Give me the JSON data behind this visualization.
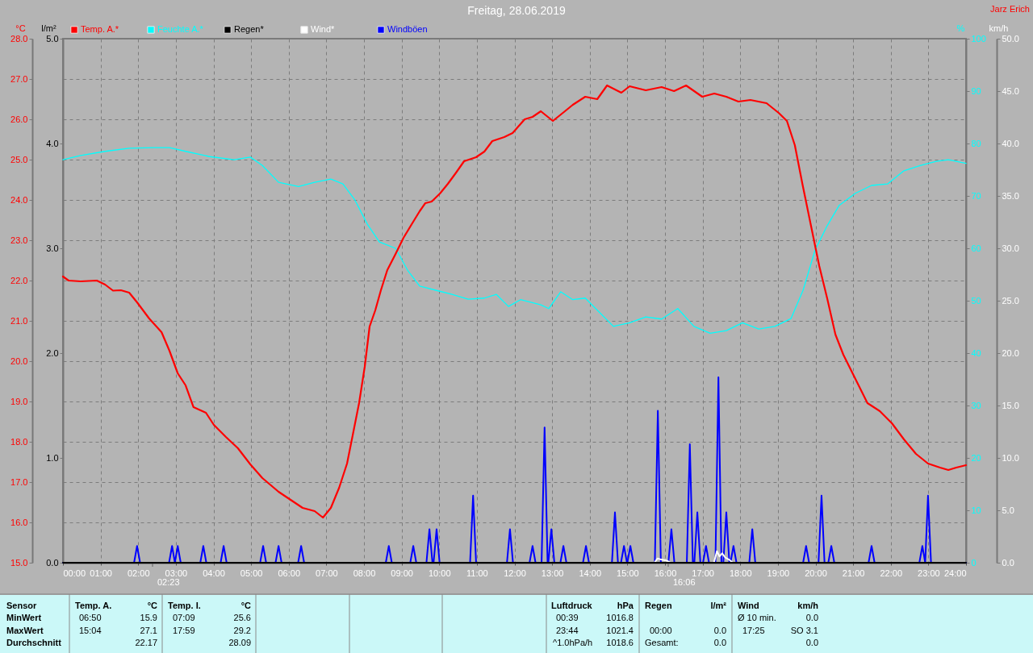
{
  "chart_data": [
    {
      "type": "line",
      "title": "Freitag, 28.06.2019",
      "ylabel": "°C",
      "y2label": "l/m²",
      "y3label": "%",
      "xlim": [
        0,
        24
      ],
      "xticks": [
        {
          "value": 0,
          "label": "00:00"
        },
        {
          "value": 1,
          "label": "01:00"
        },
        {
          "value": 2,
          "label": "02:00"
        },
        {
          "value": 3,
          "label": "03:00"
        },
        {
          "value": 4,
          "label": "04:00"
        },
        {
          "value": 5,
          "label": "05:00"
        },
        {
          "value": 6,
          "label": "06:00"
        },
        {
          "value": 7,
          "label": "07:00"
        },
        {
          "value": 8,
          "label": "08:00"
        },
        {
          "value": 9,
          "label": "09:00"
        },
        {
          "value": 10,
          "label": "10:00"
        },
        {
          "value": 11,
          "label": "11:00"
        },
        {
          "value": 12,
          "label": "12:00"
        },
        {
          "value": 13,
          "label": "13:00"
        },
        {
          "value": 14,
          "label": "14:00"
        },
        {
          "value": 15,
          "label": "15:00"
        },
        {
          "value": 16,
          "label": "16:00"
        },
        {
          "value": 17,
          "label": "17:00"
        },
        {
          "value": 18,
          "label": "18:00"
        },
        {
          "value": 19,
          "label": "19:00"
        },
        {
          "value": 20,
          "label": "20:00"
        },
        {
          "value": 21,
          "label": "21:00"
        },
        {
          "value": 22,
          "label": "22:00"
        },
        {
          "value": 23,
          "label": "23:00"
        },
        {
          "value": 24,
          "label": "24:00"
        }
      ],
      "ylim": [
        15,
        28
      ],
      "yticks": [
        {
          "value": 15,
          "label": "15.0"
        },
        {
          "value": 16,
          "label": "16.0"
        },
        {
          "value": 17,
          "label": "17.0"
        },
        {
          "value": 18,
          "label": "18.0"
        },
        {
          "value": 19,
          "label": "19.0"
        },
        {
          "value": 20,
          "label": "20.0"
        },
        {
          "value": 21,
          "label": "21.0"
        },
        {
          "value": 22,
          "label": "22.0"
        },
        {
          "value": 23,
          "label": "23.0"
        },
        {
          "value": 24,
          "label": "24.0"
        },
        {
          "value": 25,
          "label": "25.0"
        },
        {
          "value": 26,
          "label": "26.0"
        },
        {
          "value": 27,
          "label": "27.0"
        },
        {
          "value": 28,
          "label": "28.0"
        }
      ],
      "y2lim": [
        0,
        5
      ],
      "y2ticks": [
        {
          "value": 0,
          "label": "0.0"
        },
        {
          "value": 1,
          "label": "1.0"
        },
        {
          "value": 2,
          "label": "2.0"
        },
        {
          "value": 3,
          "label": "3.0"
        },
        {
          "value": 4,
          "label": "4.0"
        },
        {
          "value": 5,
          "label": "5.0"
        }
      ],
      "y3lim": [
        0,
        100
      ],
      "y3ticks": [
        0,
        10,
        20,
        30,
        40,
        50,
        60,
        70,
        80,
        90,
        100
      ],
      "grid": true,
      "legend": "top left",
      "series": [
        {
          "name": "Temp. A.*",
          "color": "#ff0000",
          "x": [
            0,
            0.15,
            0.47,
            0.9,
            1.12,
            1.33,
            1.54,
            1.76,
            1.97,
            2.29,
            2.62,
            2.83,
            3.05,
            3.26,
            3.47,
            3.8,
            4.01,
            4.33,
            4.65,
            4.98,
            5.3,
            5.73,
            6.05,
            6.37,
            6.69,
            6.91,
            7.12,
            7.34,
            7.55,
            7.7,
            7.87,
            8.02,
            8.15,
            8.3,
            8.45,
            8.62,
            8.84,
            9.05,
            9.27,
            9.48,
            9.63,
            9.8,
            10.02,
            10.23,
            10.45,
            10.66,
            10.98,
            11.2,
            11.41,
            11.73,
            11.95,
            12.27,
            12.48,
            12.7,
            13.02,
            13.34,
            13.55,
            13.88,
            14.2,
            14.46,
            14.84,
            15.06,
            15.49,
            15.91,
            16.24,
            16.56,
            16.99,
            17.31,
            17.63,
            17.95,
            18.27,
            18.7,
            19.02,
            19.24,
            19.45,
            19.66,
            19.88,
            20.1,
            20.31,
            20.53,
            20.74,
            21.06,
            21.38,
            21.71,
            22.03,
            22.35,
            22.67,
            22.99,
            23.31,
            23.53,
            23.74,
            24
          ],
          "values": [
            22.1,
            22.0,
            21.98,
            22.0,
            21.9,
            21.75,
            21.76,
            21.7,
            21.46,
            21.06,
            20.72,
            20.26,
            19.7,
            19.4,
            18.86,
            18.72,
            18.42,
            18.12,
            17.84,
            17.44,
            17.1,
            16.76,
            16.56,
            16.36,
            16.28,
            16.12,
            16.36,
            16.86,
            17.46,
            18.16,
            18.96,
            19.86,
            20.86,
            21.26,
            21.76,
            22.26,
            22.66,
            23.06,
            23.4,
            23.72,
            23.92,
            23.96,
            24.16,
            24.4,
            24.68,
            24.96,
            25.06,
            25.2,
            25.46,
            25.56,
            25.66,
            26.0,
            26.06,
            26.2,
            25.96,
            26.2,
            26.36,
            26.56,
            26.5,
            26.84,
            26.66,
            26.82,
            26.72,
            26.8,
            26.7,
            26.84,
            26.56,
            26.64,
            26.56,
            26.44,
            26.48,
            26.4,
            26.16,
            25.96,
            25.36,
            24.36,
            23.36,
            22.36,
            21.56,
            20.66,
            20.16,
            19.56,
            18.96,
            18.76,
            18.46,
            18.06,
            17.7,
            17.46,
            17.36,
            17.3,
            17.36,
            17.42
          ]
        },
        {
          "name": "Feuchte A.*",
          "color": "#00ffff",
          "axis": "y3",
          "x": [
            0,
            0.47,
            1.12,
            1.76,
            2.4,
            2.83,
            3.26,
            3.9,
            4.55,
            4.98,
            5.3,
            5.73,
            6.26,
            6.69,
            7.12,
            7.44,
            7.76,
            8.09,
            8.41,
            8.84,
            9.16,
            9.48,
            9.91,
            10.34,
            10.77,
            11.2,
            11.52,
            11.84,
            12.16,
            12.7,
            12.91,
            13.23,
            13.55,
            13.88,
            14.2,
            14.63,
            15.06,
            15.49,
            15.91,
            16.34,
            16.77,
            17.2,
            17.63,
            18.06,
            18.49,
            18.92,
            19.35,
            19.67,
            19.99,
            20.31,
            20.63,
            21.06,
            21.49,
            21.92,
            22.35,
            22.78,
            23.21,
            23.53,
            24
          ],
          "values": [
            76.9,
            77.7,
            78.5,
            79.1,
            79.2,
            79.2,
            78.5,
            77.5,
            76.9,
            77.4,
            75.8,
            72.6,
            71.8,
            72.6,
            73.2,
            72.3,
            69.2,
            64.6,
            61.2,
            60.0,
            55.8,
            52.8,
            52.0,
            51.2,
            50.3,
            50.5,
            51.2,
            48.9,
            50.2,
            49.2,
            48.5,
            51.7,
            50.2,
            50.5,
            48.2,
            45.1,
            45.8,
            46.9,
            46.5,
            48.5,
            45.1,
            43.8,
            44.3,
            45.8,
            44.6,
            45.1,
            46.6,
            52.0,
            59.7,
            64.3,
            68.2,
            70.5,
            72.0,
            72.3,
            74.8,
            75.8,
            76.6,
            76.9,
            76.2
          ]
        },
        {
          "name": "Regen*",
          "color": "#000000",
          "axis": "y2",
          "x": [
            0,
            24
          ],
          "values": [
            0,
            0
          ]
        }
      ],
      "annotations": [
        "Jarz Erich",
        "02:23",
        "16:06",
        "Sensor",
        "Temp. A.",
        "°C",
        "Temp. I.",
        "°C",
        "Luftdruck",
        "hPa",
        "Regen",
        "l/m²",
        "Wind",
        "km/h",
        "MinWert",
        "06:50",
        "15.9",
        "07:09",
        "25.6",
        "00:39",
        "1016.8",
        "Ø 10 min.",
        "0.0",
        "MaxWert",
        "15:04",
        "27.1",
        "17:59",
        "29.2",
        "23:44",
        "1021.4",
        "00:00",
        "0.0",
        "17:25",
        "SO 3.1",
        "Durchschnitt",
        "22.17",
        "28.09",
        "^1.0hPa/h",
        "1018.6",
        "Gesamt:",
        "0.0",
        "0.0"
      ]
    },
    {
      "type": "line",
      "ylabel": "km/h",
      "xlim": [
        0,
        24
      ],
      "ylim": [
        0,
        50
      ],
      "yticks": [
        {
          "value": 0,
          "label": "0.0"
        },
        {
          "value": 5,
          "label": "5.0"
        },
        {
          "value": 10,
          "label": "10.0"
        },
        {
          "value": 15,
          "label": "15.0"
        },
        {
          "value": 20,
          "label": "20.0"
        },
        {
          "value": 25,
          "label": "25.0"
        },
        {
          "value": 30,
          "label": "30.0"
        },
        {
          "value": 35,
          "label": "35.0"
        },
        {
          "value": 40,
          "label": "40.0"
        },
        {
          "value": 45,
          "label": "45.0"
        },
        {
          "value": 50,
          "label": "50.0"
        }
      ],
      "tick_labels": "y",
      "legend": "top left",
      "series": [
        {
          "name": "Wind*",
          "color": "#ffffff",
          "x": [
            15.72,
            15.8,
            15.9,
            16.05,
            16.15,
            16.8,
            17.3,
            17.38,
            17.45,
            17.52,
            17.6,
            17.7,
            17.8
          ],
          "values": [
            0,
            0.4,
            0.3,
            0.2,
            0,
            null,
            0,
            1.1,
            0.6,
            0.9,
            0.5,
            0.3,
            0
          ]
        },
        {
          "name": "Windböen",
          "color": "#0000ff",
          "x": [
            0,
            1.89,
            1.97,
            2.05,
            2.82,
            2.9,
            2.975,
            3.05,
            3.13,
            3.65,
            3.73,
            3.81,
            4.19,
            4.27,
            4.35,
            5.24,
            5.32,
            5.4,
            5.65,
            5.73,
            5.81,
            6.25,
            6.33,
            6.41,
            8.58,
            8.66,
            8.74,
            9.23,
            9.31,
            9.39,
            9.66,
            9.74,
            9.82,
            9.85,
            9.93,
            10.01,
            10.82,
            10.9,
            10.98,
            11.8,
            11.88,
            11.96,
            12.4,
            12.48,
            12.56,
            12.72,
            12.8,
            12.88,
            12.9,
            12.98,
            13.06,
            13.22,
            13.3,
            13.38,
            13.82,
            13.9,
            13.98,
            14.59,
            14.67,
            14.75,
            14.83,
            14.91,
            14.99,
            15.0,
            15.08,
            15.16,
            15.73,
            15.81,
            15.89,
            16.09,
            16.17,
            16.25,
            16.58,
            16.66,
            16.74,
            16.78,
            16.86,
            16.94,
            17.01,
            17.09,
            17.17,
            17.34,
            17.42,
            17.5,
            17.55,
            17.63,
            17.71,
            17.74,
            17.82,
            17.9,
            18.24,
            18.32,
            18.4,
            19.67,
            19.75,
            19.83,
            20.08,
            20.16,
            20.24,
            20.34,
            20.42,
            20.5,
            21.41,
            21.49,
            21.57,
            22.76,
            22.84,
            22.915,
            22.99,
            23.07,
            24
          ],
          "values": [
            0,
            0,
            1.6,
            0,
            0,
            1.6,
            0,
            1.6,
            0,
            0,
            1.6,
            0,
            0,
            1.6,
            0,
            0,
            1.6,
            0,
            0,
            1.6,
            0,
            0,
            1.6,
            0,
            0,
            1.6,
            0,
            0,
            1.6,
            0,
            0,
            3.2,
            0,
            0,
            3.2,
            0,
            0,
            6.4,
            0,
            0,
            3.2,
            0,
            0,
            1.6,
            0,
            0,
            12.9,
            0,
            0,
            3.2,
            0,
            0,
            1.6,
            0,
            0,
            1.6,
            0,
            0,
            4.8,
            0,
            0,
            1.6,
            0,
            0,
            1.6,
            0,
            0,
            14.5,
            0,
            0,
            3.2,
            0,
            0,
            11.3,
            0,
            0,
            4.8,
            0,
            0,
            1.6,
            0,
            0,
            17.7,
            0,
            0,
            4.8,
            0,
            0,
            1.6,
            0,
            0,
            3.2,
            0,
            0,
            1.6,
            0,
            0,
            6.4,
            0,
            0,
            1.6,
            0,
            0,
            1.6,
            0,
            0,
            1.6,
            0,
            6.4,
            0,
            0
          ]
        }
      ]
    }
  ]
}
